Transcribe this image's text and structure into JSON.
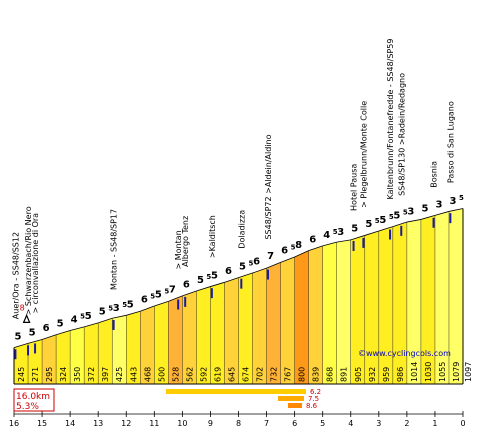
{
  "chart_data": {
    "type": "area",
    "x_unit": "km",
    "x_ticks": [
      16,
      15,
      14,
      13,
      12,
      11,
      10,
      9,
      8,
      7,
      6,
      5,
      4,
      3,
      2,
      1,
      0
    ],
    "segments": [
      {
        "gradient": "5",
        "alt_start": 245
      },
      {
        "gradient": "5",
        "alt_start": 271
      },
      {
        "gradient": "6",
        "alt_start": 295
      },
      {
        "gradient": "5",
        "alt_start": 324
      },
      {
        "gradient": "4",
        "sup": "5",
        "alt_start": 350
      },
      {
        "gradient": "5",
        "alt_start": 372
      },
      {
        "gradient": "5",
        "sup": "5",
        "alt_start": 397
      },
      {
        "gradient": "3",
        "sup": "5",
        "alt_start": 425
      },
      {
        "gradient": "5",
        "alt_start": 443
      },
      {
        "gradient": "6",
        "sup": "5",
        "alt_start": 468
      },
      {
        "gradient": "5",
        "sup": "5",
        "alt_start": 500
      },
      {
        "gradient": "7",
        "alt_start": 528
      },
      {
        "gradient": "6",
        "alt_start": 562
      },
      {
        "gradient": "5",
        "sup": "5",
        "alt_start": 592
      },
      {
        "gradient": "5",
        "alt_start": 619
      },
      {
        "gradient": "6",
        "alt_start": 645
      },
      {
        "gradient": "5",
        "sup": "5",
        "alt_start": 674
      },
      {
        "gradient": "6",
        "alt_start": 702
      },
      {
        "gradient": "7",
        "alt_start": 732
      },
      {
        "gradient": "6",
        "sup": "5",
        "alt_start": 767
      },
      {
        "gradient": "8",
        "alt_start": 800
      },
      {
        "gradient": "6",
        "alt_start": 839
      },
      {
        "gradient": "4",
        "sup": "5",
        "alt_start": 868
      },
      {
        "gradient": "3",
        "alt_start": 891
      },
      {
        "gradient": "5",
        "alt_start": 905
      },
      {
        "gradient": "5",
        "sup": "5",
        "alt_start": 932
      },
      {
        "gradient": "5",
        "sup": "5",
        "alt_start": 959
      },
      {
        "gradient": "5",
        "sup": "5",
        "alt_start": 986
      },
      {
        "gradient": "3",
        "alt_start": 1014
      },
      {
        "gradient": "5",
        "alt_start": 1030
      },
      {
        "gradient": "3",
        "alt_start": 1055
      },
      {
        "gradient": "3",
        "sup": "5",
        "alt_start": 1079
      }
    ],
    "summit_alt": 1097,
    "start_marker": "8",
    "places": [
      {
        "label": "Auer/Ora - SS48/SS12",
        "km": 15.95
      },
      {
        "label": "> Schwarzenbach/Rio Nero",
        "km": 15.5
      },
      {
        "label": "> circonvallazione di Ora",
        "km": 15.25
      },
      {
        "label": "Montan - SS48/SP17",
        "km": 12.45
      },
      {
        "label": "> Montan",
        "km": 10.15
      },
      {
        "label": "Albergo Tenz",
        "km": 9.9
      },
      {
        "label": ">Kalditsch",
        "km": 8.95
      },
      {
        "label": "Doladizza",
        "km": 7.9
      },
      {
        "label": "SS48/SP72 >Aldein/Aldino",
        "km": 6.95
      },
      {
        "label": "Hotel Pausa",
        "km": 3.9
      },
      {
        "label": "> Plegelbrunn/Monte Colle",
        "km": 3.55
      },
      {
        "label": "Kaltenbrunn/Fontanefredde - SS48/SP59",
        "km": 2.6
      },
      {
        "label": "SS48/SP130 >Radein/Redagno",
        "km": 2.2
      },
      {
        "label": "Bosnia",
        "km": 1.05
      },
      {
        "label": "Passo di San Lugano",
        "km": 0.45
      }
    ],
    "info": {
      "distance": "16.0km",
      "average": "5.3%"
    },
    "max_bars": [
      {
        "value": "6.2"
      },
      {
        "value": "7.5"
      },
      {
        "value": "8.6"
      }
    ],
    "website": "©www.cyclingcols.com",
    "colors": {
      "g3": "#ffff66",
      "g4": "#ffff44",
      "g5": "#ffee22",
      "g6": "#ffd23a",
      "g7": "#ffb236",
      "g8": "#ff9a18",
      "outline": "#000000",
      "text_red": "#cc0000",
      "site_blue": "#0000cc"
    }
  }
}
